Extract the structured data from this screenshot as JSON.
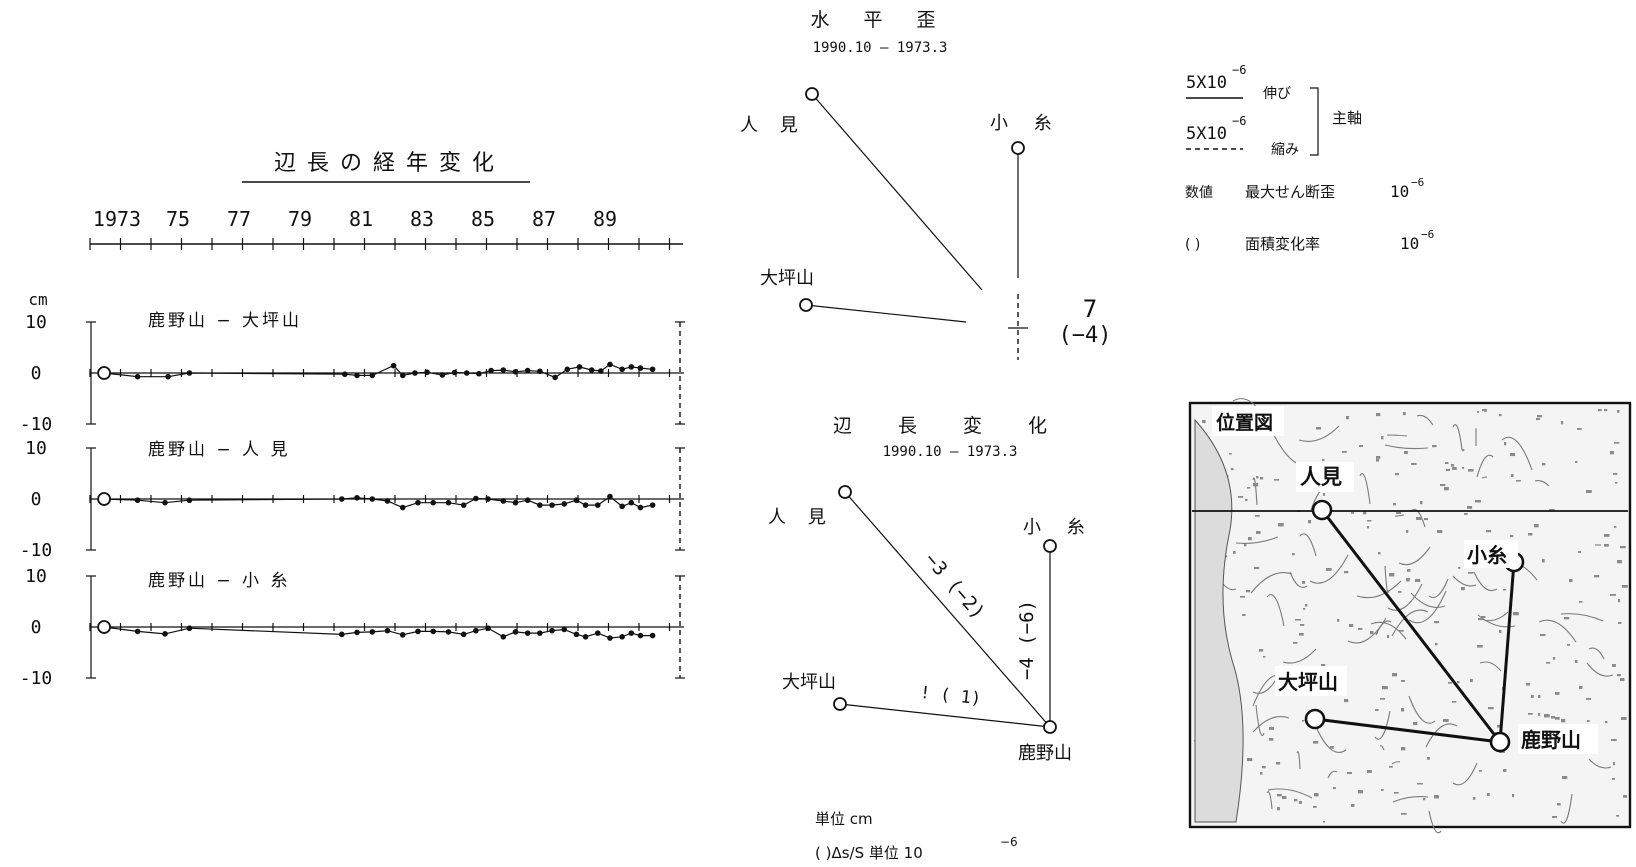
{
  "timeseries": {
    "title": "辺 長 の 経 年 変 化",
    "years": [
      "1973",
      "75",
      "77",
      "79",
      "81",
      "83",
      "85",
      "87",
      "89"
    ],
    "unit": "cm",
    "ytick_top": "10",
    "ytick_zero": "0",
    "ytick_bottom": "-10",
    "panels": [
      {
        "label": "鹿野山 − 大坪山"
      },
      {
        "label": "鹿野山 − 人 見"
      },
      {
        "label": "鹿野山 − 小 糸"
      }
    ]
  },
  "strain": {
    "title": "水 平 歪",
    "period": "1990.10 — 1973.3",
    "stations": {
      "hitomi": "人 見",
      "koito": "小 糸",
      "otsubo": "大坪山"
    },
    "value": "7",
    "value_paren": "(−4)"
  },
  "legend": {
    "ext_value": "5X10",
    "exp": "−6",
    "ext_label": "伸び",
    "cmp_value": "5X10",
    "cmp_label": "縮み",
    "principal": "主軸",
    "row2_label": "数値",
    "row2_desc": "最大せん断歪",
    "row2_unit": "10",
    "row3_label": "( )",
    "row3_desc": "面積変化率",
    "row3_unit": "10"
  },
  "baseline": {
    "title": "辺 長 変 化",
    "period": "1990.10 — 1973.3",
    "stations": {
      "hitomi": "人 見",
      "koito": "小 糸",
      "otsubo": "大坪山",
      "kanozan": "鹿野山"
    },
    "hitomi_value": "−3 (−2)",
    "koito_value": "−4 (−6)",
    "otsubo_value": "! ( 1)",
    "unit_line": "単位 cm",
    "note_line": "( )Δs/S 単位 10",
    "note_exp": "−6"
  },
  "map": {
    "title": "位置図",
    "stations": {
      "hitomi": "人見",
      "koito": "小糸",
      "otsubo": "大坪山",
      "kanozan": "鹿野山"
    }
  },
  "chart_data": {
    "type": "scatter",
    "x_unit": "year",
    "y_unit": "cm",
    "xlim": [
      1973,
      1992
    ],
    "ylim": [
      -10,
      10
    ],
    "series": [
      {
        "name": "鹿野山 − 大坪山",
        "x": [
          1973.2,
          1974.3,
          1975.3,
          1976,
          1981.1,
          1981.5,
          1982,
          1982.7,
          1983,
          1983.4,
          1983.8,
          1984.3,
          1984.7,
          1985.1,
          1985.5,
          1985.9,
          1986.3,
          1986.7,
          1987.1,
          1987.5,
          1988,
          1988.4,
          1988.8,
          1989.2,
          1989.5,
          1989.8,
          1990.2,
          1990.5,
          1990.8,
          1991.2
        ],
        "y": [
          0,
          -1.5,
          -1.5,
          0,
          -0.5,
          -1,
          -1,
          3,
          -1,
          0,
          0.3,
          -0.8,
          0.2,
          0,
          -0.3,
          1,
          1.2,
          0.5,
          1,
          0.7,
          -1.8,
          1.5,
          2.5,
          1.2,
          0.8,
          3.5,
          1.5,
          2.5,
          2,
          1.5
        ]
      },
      {
        "name": "鹿野山 − 人 見",
        "x": [
          1973.2,
          1974.3,
          1975.2,
          1976,
          1981,
          1981.5,
          1982,
          1982.5,
          1983,
          1983.5,
          1984,
          1984.5,
          1985,
          1985.4,
          1985.8,
          1986.3,
          1986.7,
          1987.1,
          1987.5,
          1987.9,
          1988.3,
          1988.7,
          1989,
          1989.4,
          1989.8,
          1990.2,
          1990.5,
          1990.8,
          1991.2
        ],
        "y": [
          0,
          -0.5,
          -1.5,
          -0.5,
          0,
          0.5,
          0,
          -0.8,
          -3.5,
          -1.5,
          -1.5,
          -1.5,
          -2.5,
          0.2,
          0,
          -0.8,
          -1.5,
          -0.5,
          -2.5,
          -2.5,
          -2,
          -0.5,
          -2.5,
          -2.5,
          1,
          -3,
          -1.5,
          -3.5,
          -2.5
        ]
      },
      {
        "name": "鹿野山 − 小 糸",
        "x": [
          1973.2,
          1974.3,
          1975.2,
          1976,
          1981,
          1981.5,
          1982,
          1982.5,
          1983,
          1983.5,
          1984,
          1984.5,
          1985,
          1985.4,
          1985.8,
          1986.3,
          1986.7,
          1987.1,
          1987.5,
          1987.9,
          1988.3,
          1988.7,
          1989,
          1989.4,
          1989.8,
          1990.2,
          1990.5,
          1990.8,
          1991.2
        ],
        "y": [
          0,
          -1.8,
          -2.8,
          -0.5,
          -3,
          -2.2,
          -2,
          -1.5,
          -3.2,
          -1.8,
          -1.8,
          -2,
          -3,
          -1.5,
          -0.5,
          -4,
          -2,
          -2.5,
          -2.5,
          -1.5,
          -1,
          -3,
          -4,
          -2.5,
          -4.5,
          -4,
          -2.5,
          -3.5,
          -3.5
        ]
      }
    ]
  }
}
